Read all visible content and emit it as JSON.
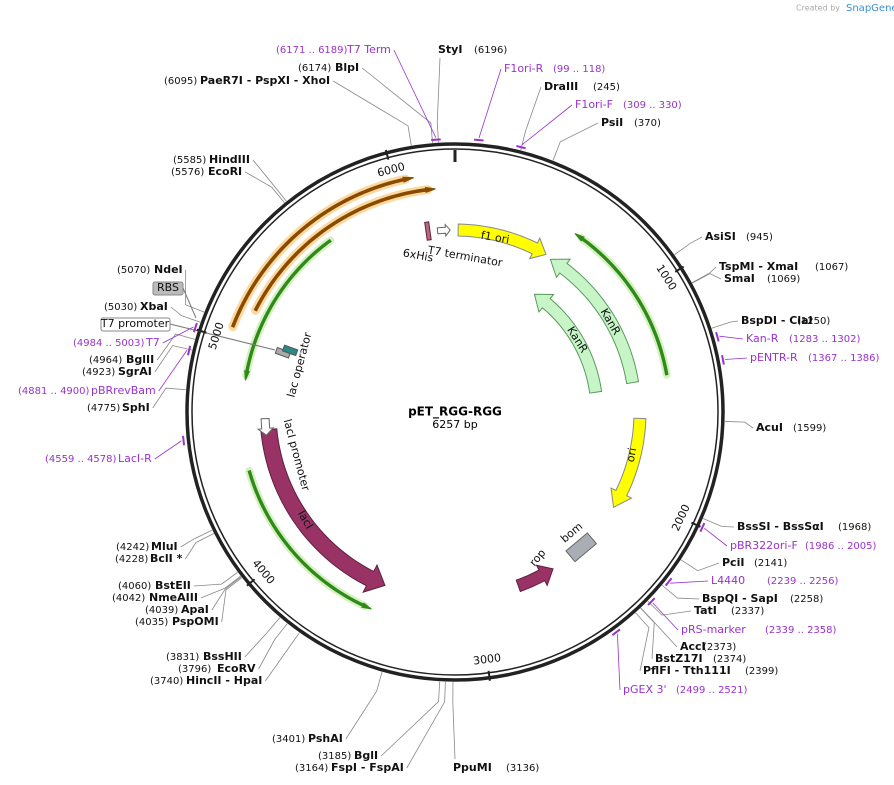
{
  "header": {
    "created_by": "Created by",
    "brand": "SnapGene"
  },
  "plasmid": {
    "name": "pET_RGG-RGG",
    "size": {
      "value": 6257,
      "label": "6257 bp"
    }
  },
  "ticks": [
    1000,
    2000,
    3000,
    4000,
    5000,
    6000
  ],
  "sites": [
    {
      "name": "StyI",
      "position": {
        "value": 6196,
        "label": "(6196)"
      }
    },
    {
      "name": "BlpI",
      "position": {
        "value": 6174,
        "label": "(6174)"
      }
    },
    {
      "name": "PaeR7I - PspXI - XhoI",
      "position": {
        "value": 6095,
        "label": "(6095)"
      }
    },
    {
      "name": "DraIII",
      "position": {
        "value": 245,
        "label": "(245)"
      }
    },
    {
      "name": "PsiI",
      "position": {
        "value": 370,
        "label": "(370)"
      }
    },
    {
      "name": "HindIII",
      "position": {
        "value": 5585,
        "label": "(5585)"
      }
    },
    {
      "name": "EcoRI",
      "position": {
        "value": 5576,
        "label": "(5576)"
      }
    },
    {
      "name": "AsiSI",
      "position": {
        "value": 945,
        "label": "(945)"
      }
    },
    {
      "name": "TspMI - XmaI",
      "position": {
        "value": 1067,
        "label": "(1067)"
      }
    },
    {
      "name": "SmaI",
      "position": {
        "value": 1069,
        "label": "(1069)"
      }
    },
    {
      "name": "NdeI",
      "position": {
        "value": 5070,
        "label": "(5070)"
      }
    },
    {
      "name": "XbaI",
      "position": {
        "value": 5030,
        "label": "(5030)"
      }
    },
    {
      "name": "BspDI - ClaI",
      "position": {
        "value": 1250,
        "label": "(1250)"
      }
    },
    {
      "name": "BglII",
      "position": {
        "value": 4964,
        "label": "(4964)"
      }
    },
    {
      "name": "SgrAI",
      "position": {
        "value": 4923,
        "label": "(4923)"
      }
    },
    {
      "name": "SphI",
      "position": {
        "value": 4775,
        "label": "(4775)"
      }
    },
    {
      "name": "AcuI",
      "position": {
        "value": 1599,
        "label": "(1599)"
      }
    },
    {
      "name": "BssSI - BssSαI",
      "position": {
        "value": 1968,
        "label": "(1968)"
      }
    },
    {
      "name": "MluI",
      "position": {
        "value": 4242,
        "label": "(4242)"
      }
    },
    {
      "name": "BclI *",
      "position": {
        "value": 4228,
        "label": "(4228)"
      }
    },
    {
      "name": "PciI",
      "position": {
        "value": 2141,
        "label": "(2141)"
      }
    },
    {
      "name": "BstEII",
      "position": {
        "value": 4060,
        "label": "(4060)"
      }
    },
    {
      "name": "NmeAIII",
      "position": {
        "value": 4042,
        "label": "(4042)"
      }
    },
    {
      "name": "BspQI - SapI",
      "position": {
        "value": 2258,
        "label": "(2258)"
      }
    },
    {
      "name": "ApaI",
      "position": {
        "value": 4039,
        "label": "(4039)"
      }
    },
    {
      "name": "TatI",
      "position": {
        "value": 2337,
        "label": "(2337)"
      }
    },
    {
      "name": "PspOMI",
      "position": {
        "value": 4035,
        "label": "(4035)"
      }
    },
    {
      "name": "AccI",
      "position": {
        "value": 2373,
        "label": "(2373)"
      }
    },
    {
      "name": "BssHII",
      "position": {
        "value": 3831,
        "label": "(3831)"
      }
    },
    {
      "name": "BstZ17I",
      "position": {
        "value": 2374,
        "label": "(2374)"
      }
    },
    {
      "name": "EcoRV",
      "position": {
        "value": 3796,
        "label": "(3796)"
      }
    },
    {
      "name": "PflFI - Tth111I",
      "position": {
        "value": 2399,
        "label": "(2399)"
      }
    },
    {
      "name": "HincII - HpaI",
      "position": {
        "value": 3740,
        "label": "(3740)"
      }
    },
    {
      "name": "PshAI",
      "position": {
        "value": 3401,
        "label": "(3401)"
      }
    },
    {
      "name": "BglI",
      "position": {
        "value": 3185,
        "label": "(3185)"
      }
    },
    {
      "name": "PpuMI",
      "position": {
        "value": 3136,
        "label": "(3136)"
      }
    },
    {
      "name": "FspI - FspAI",
      "position": {
        "value": 3164,
        "label": "(3164)"
      }
    }
  ],
  "primers": [
    {
      "name": "T7 Term",
      "range": "(6171 .. 6189)"
    },
    {
      "name": "F1ori-R",
      "range": "(99 .. 118)"
    },
    {
      "name": "F1ori-F",
      "range": "(309 .. 330)"
    },
    {
      "name": "Kan-R",
      "range": "(1283 .. 1302)"
    },
    {
      "name": "pENTR-R",
      "range": "(1367 .. 1386)"
    },
    {
      "name": "pBR322ori-F",
      "range": "(1986 .. 2005)"
    },
    {
      "name": "L4440",
      "range": "(2239 .. 2256)"
    },
    {
      "name": "pRS-marker",
      "range": "(2339 .. 2358)"
    },
    {
      "name": "pGEX 3'",
      "range": "(2499 .. 2521)"
    },
    {
      "name": "T7",
      "range": "(4984 .. 5003)"
    },
    {
      "name": "pBRrevBam",
      "range": "(4881 .. 4900)"
    },
    {
      "name": "LacI-R",
      "range": "(4559 .. 4578)"
    }
  ],
  "features": [
    "f1 ori",
    "KanR",
    "KanR",
    "ori",
    "rop",
    "bom",
    "lacI",
    "lacI promoter",
    "lac operator",
    "T7 terminator",
    "6xHis",
    "RBS",
    "T7 promoter"
  ]
}
